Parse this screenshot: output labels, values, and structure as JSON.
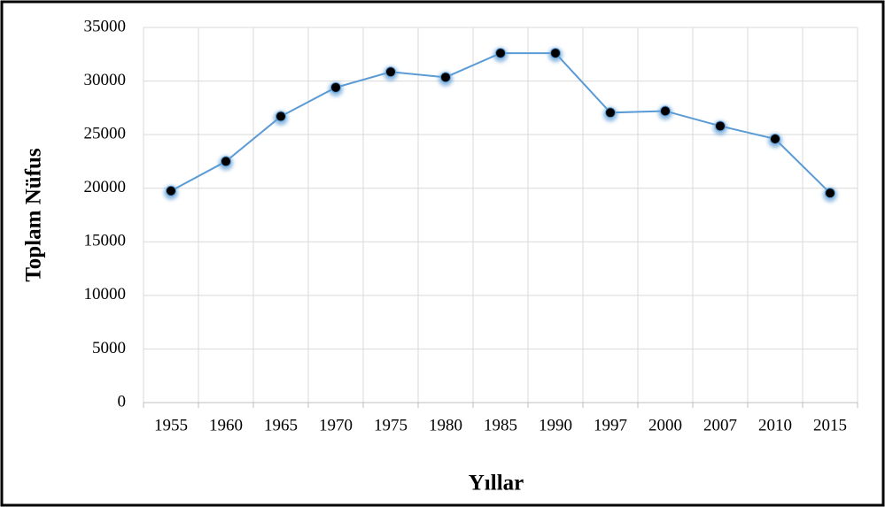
{
  "chart_data": {
    "type": "line",
    "x_label": "Yıllar",
    "y_label": "Toplam Nüfus",
    "categories": [
      "1955",
      "1960",
      "1965",
      "1970",
      "1975",
      "1980",
      "1985",
      "1990",
      "1997",
      "2000",
      "2007",
      "2010",
      "2015"
    ],
    "series": [
      {
        "name": "Toplam Nüfus",
        "color": "#5b9bd5",
        "marker_color": "#000000",
        "values": [
          19750,
          22500,
          26700,
          29400,
          30850,
          30350,
          32600,
          32600,
          27050,
          27200,
          25800,
          24600,
          19550
        ]
      }
    ],
    "ylim": [
      0,
      35000
    ],
    "yticks": [
      0,
      5000,
      10000,
      15000,
      20000,
      25000,
      30000,
      35000
    ],
    "grid": true
  }
}
